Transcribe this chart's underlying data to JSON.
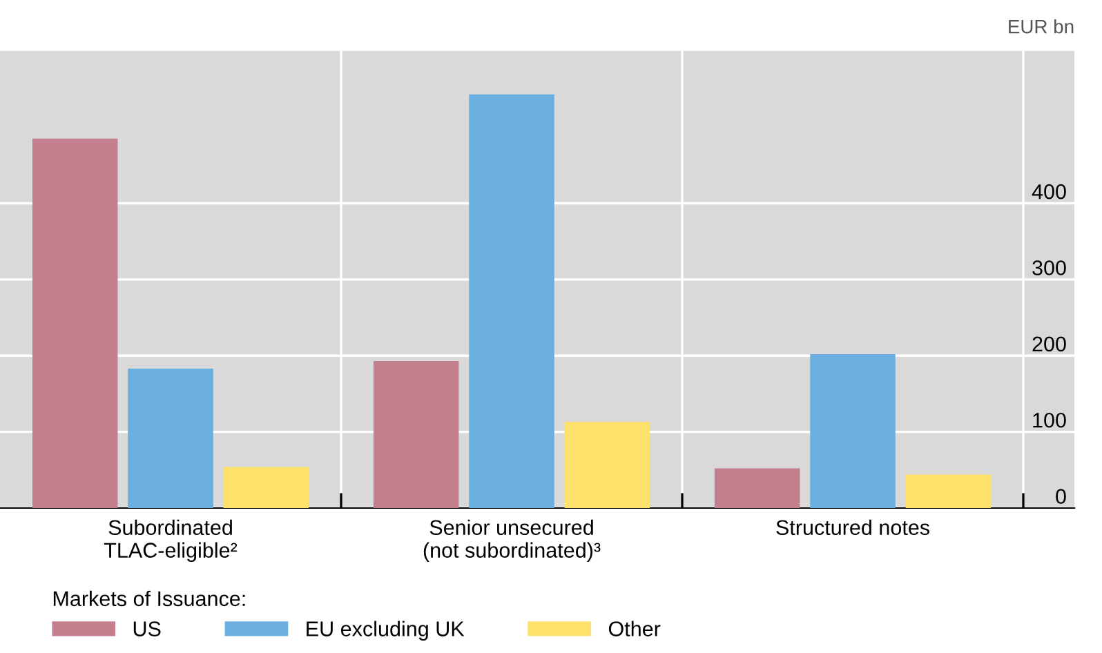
{
  "chart_data": {
    "type": "bar",
    "ylabel": "EUR bn",
    "categories": [
      "Subordinated\nTLAC-eligible²",
      "Senior unsecured\n(not subordinated)³",
      "Structured notes"
    ],
    "series": [
      {
        "name": "US",
        "color": "#c47f8e",
        "values": [
          485,
          193,
          52
        ]
      },
      {
        "name": "EU excluding UK",
        "color": "#6aafe0",
        "values": [
          183,
          543,
          202
        ]
      },
      {
        "name": "Other",
        "color": "#fde16a",
        "values": [
          54,
          113,
          44
        ]
      }
    ],
    "ylim": [
      0,
      600
    ],
    "yticks": [
      0,
      100,
      200,
      300,
      400
    ],
    "grid": true,
    "legend": "bottom left",
    "legend_title": "Markets of Issuance:"
  }
}
